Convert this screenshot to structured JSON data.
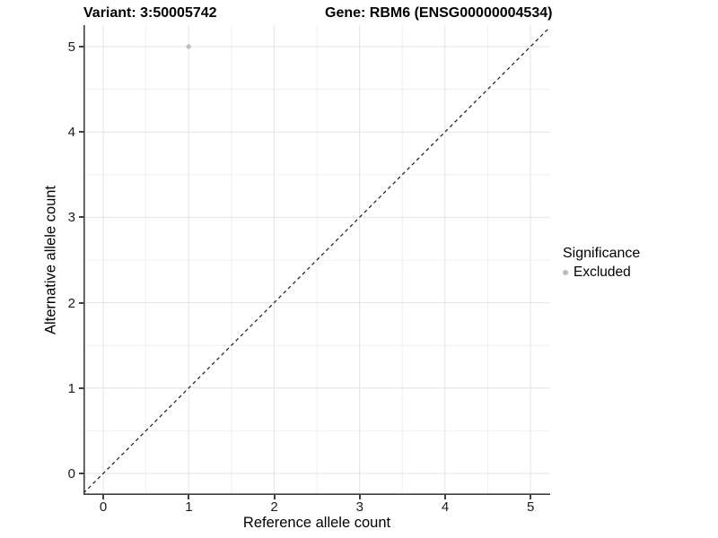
{
  "figure": {
    "title_left": "Variant: 3:50005742",
    "title_right": "Gene: RBM6 (ENSG00000004534)"
  },
  "chart_data": {
    "type": "scatter",
    "title": "Variant: 3:50005742 — Gene: RBM6 (ENSG00000004534)",
    "xlabel": "Reference allele count",
    "ylabel": "Alternative allele count",
    "x_ticks": [
      "0",
      "1",
      "2",
      "3",
      "4",
      "5"
    ],
    "y_ticks": [
      "0",
      "1",
      "2",
      "3",
      "4",
      "5"
    ],
    "xlim": [
      -0.25,
      5.25
    ],
    "ylim": [
      -0.25,
      5.25
    ],
    "grid": "major at integers, minor at 0.5 steps, light grey on white",
    "points": [
      {
        "x": 1,
        "y": 5,
        "significance": "Excluded"
      }
    ],
    "reference_line": {
      "slope": 1,
      "intercept": 0,
      "style": "dashed",
      "color": "#1a1a1a"
    },
    "point_color": "#bdbdbd",
    "legend": {
      "title": "Significance",
      "position": "right",
      "entries": [
        {
          "label": "Excluded",
          "color": "#bdbdbd",
          "marker": "circle"
        }
      ]
    }
  }
}
